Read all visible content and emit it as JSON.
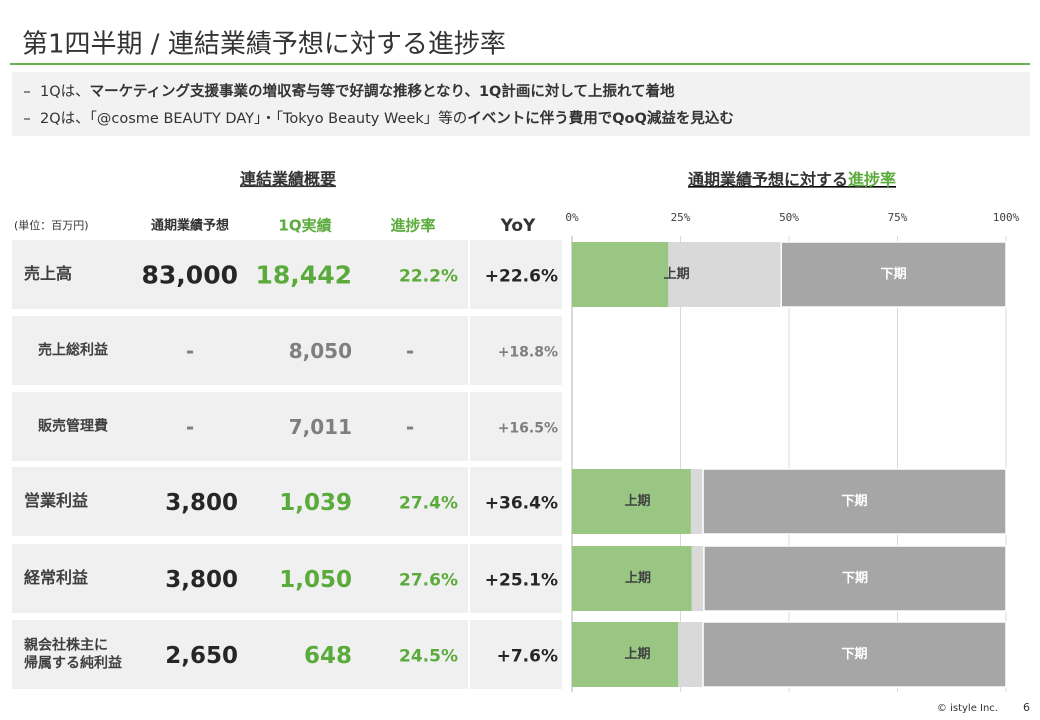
{
  "header": {
    "title": "第1四半期 / 連結業績予想に対する進捗率"
  },
  "bullets": [
    [
      "1Qは、",
      "マーケティング支援事業の増収寄与等で好調な推移となり、1Q計画に対して上振れて着地"
    ],
    [
      "2Qは、「@cosme BEAUTY DAY」・「Tokyo Beauty Week」等の",
      "イベントに伴う費用でQoQ減益を見込む"
    ]
  ],
  "table": {
    "title": "連結業績概要",
    "columns": [
      {
        "label": "(単位：百万円)",
        "color": "#333333",
        "value_color": "#404040"
      },
      {
        "label": "通期業績予想",
        "color": "#333333",
        "value_color": "#262626"
      },
      {
        "label": "1Q実績",
        "color": "#5aab3c",
        "value_color": "#5aab3c"
      },
      {
        "label": "進捗率",
        "color": "#5aab3c",
        "value_color": "#5aab3c"
      },
      {
        "label": "YoY",
        "color": "#333333",
        "value_color": "#262626"
      }
    ],
    "rows": [
      {
        "cells": [
          "売上高",
          "83,000",
          "18,442",
          "22.2%",
          "+22.6%"
        ],
        "sub": false
      },
      {
        "cells": [
          "売上総利益",
          "-",
          "8,050",
          "-",
          "+18.8%"
        ],
        "sub": true
      },
      {
        "cells": [
          "販売管理費",
          "-",
          "7,011",
          "-",
          "+16.5%"
        ],
        "sub": true
      },
      {
        "cells": [
          "営業利益",
          "3,800",
          "1,039",
          "27.4%",
          "+36.4%"
        ],
        "sub": false
      },
      {
        "cells": [
          "経常利益",
          "3,800",
          "1,050",
          "27.6%",
          "+25.1%"
        ],
        "sub": false
      },
      {
        "cells": [
          "親会社株主に\n帰属する純利益",
          "2,650",
          "648",
          "24.5%",
          "+7.6%"
        ],
        "sub": false
      }
    ]
  },
  "chart_data": {
    "type": "bar",
    "orientation": "horizontal",
    "stacked": true,
    "title_parts": [
      "通期業績予想に対する",
      "進捗率"
    ],
    "title_colors": [
      "#333333",
      "#5aab3c"
    ],
    "categories": [
      null,
      null,
      null,
      null,
      null,
      null
    ],
    "segment_labels": [
      "上期",
      "下期"
    ],
    "series": [
      {
        "color": "#99c783",
        "values": [
          22.2,
          null,
          null,
          27.4,
          27.6,
          24.5
        ]
      },
      {
        "color": "#d9d9d9",
        "values": [
          26.0,
          null,
          null,
          2.8,
          2.8,
          5.7
        ]
      },
      {
        "color": "#a6a6a6",
        "values": [
          51.8,
          null,
          null,
          69.8,
          69.6,
          69.8
        ]
      }
    ],
    "xlim": [
      0,
      100
    ],
    "xticks": [
      {
        "value": 0,
        "label": "0%"
      },
      {
        "value": 25,
        "label": "25%"
      },
      {
        "value": 50,
        "label": "50%"
      },
      {
        "value": 75,
        "label": "75%"
      },
      {
        "value": 100,
        "label": "100%"
      }
    ],
    "grid": true
  },
  "footer": {
    "copyright": "© istyle Inc.",
    "page": "6"
  }
}
